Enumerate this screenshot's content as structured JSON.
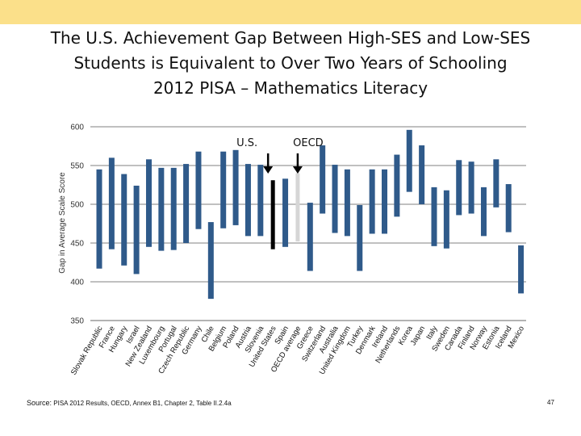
{
  "title": {
    "line1": "The U.S. Achievement Gap Between High-SES and Low-SES",
    "line2": "Students is Equivalent to Over Two Years of Schooling",
    "line3": "2012 PISA – Mathematics Literacy"
  },
  "footer": {
    "source_label": "Source:",
    "source_text": "PISA 2012 Results, OECD, Annex B1, Chapter 2, Table II.2.4a",
    "page_number": "47"
  },
  "colors": {
    "bar": "#2f5a8a",
    "us_bar": "#000000",
    "oecd_bar": "#d6d6d6",
    "grid": "#9a9a9a",
    "top_band": "#fbe08a"
  },
  "chart_data": {
    "type": "range-bar",
    "title": "2012 PISA – Mathematics Literacy",
    "ylabel": "Gap in Average Scale Score",
    "xlabel": "",
    "ylim": [
      350,
      600
    ],
    "yticks": [
      350,
      400,
      450,
      500,
      550,
      600
    ],
    "grid": true,
    "annotations": [
      {
        "text": "U.S.",
        "category": "United States"
      },
      {
        "text": "OECD",
        "category": "OECD average"
      }
    ],
    "categories": [
      "Slovak Republic",
      "France",
      "Hungary",
      "Israel",
      "New Zealand",
      "Luxembourg",
      "Portugal",
      "Czech Republic",
      "Germany",
      "Chile",
      "Belgium",
      "Poland",
      "Austria",
      "Slovenia",
      "United States",
      "Spain",
      "OECD average",
      "Greece",
      "Switzerland",
      "Australia",
      "United Kingdom",
      "Turkey",
      "Denmark",
      "Ireland",
      "Netherlands",
      "Korea",
      "Japan",
      "Italy",
      "Sweden",
      "Canada",
      "Finland",
      "Norway",
      "Estonia",
      "Iceland",
      "Mexico"
    ],
    "series": [
      {
        "name": "High-SES",
        "values": [
          545,
          560,
          539,
          524,
          558,
          547,
          547,
          552,
          568,
          477,
          568,
          570,
          552,
          551,
          531,
          533,
          540,
          502,
          576,
          551,
          545,
          499,
          545,
          545,
          564,
          596,
          576,
          522,
          518,
          557,
          555,
          522,
          558,
          526,
          447
        ]
      },
      {
        "name": "Low-SES",
        "values": [
          417,
          442,
          421,
          410,
          445,
          440,
          441,
          450,
          468,
          378,
          469,
          473,
          459,
          459,
          442,
          445,
          452,
          414,
          488,
          463,
          459,
          414,
          462,
          462,
          484,
          516,
          500,
          446,
          443,
          486,
          488,
          459,
          496,
          464,
          385
        ]
      }
    ]
  }
}
